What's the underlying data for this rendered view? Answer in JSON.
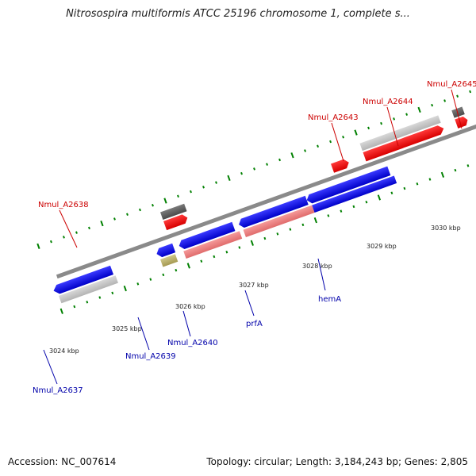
{
  "title": "Nitrosospira multiformis ATCC 25196 chromosome 1, complete s...",
  "footer": {
    "accession": "Accession: NC_007614",
    "summary": "Topology: circular; Length: 3,184,243 bp; Genes: 2,805"
  },
  "scale": {
    "ticks": [
      "3024 kbp",
      "3025 kbp",
      "3026 kbp",
      "3027 kbp",
      "3028 kbp",
      "3029 kbp",
      "3030 kbp"
    ]
  },
  "colors": {
    "cds": "#0000ee",
    "cds_highlight": "#f08080",
    "gene_label_forward": "#cc0000",
    "gene_label_reverse": "#0000aa",
    "backbone": "#808080",
    "ticks": "#008000"
  },
  "genes": {
    "forward": [
      "Nmul_A2638",
      "Nmul_A2643",
      "Nmul_A2644",
      "Nmul_A2645"
    ],
    "reverse": [
      "Nmul_A2637",
      "Nmul_A2639",
      "Nmul_A2640",
      "prfA",
      "hemA"
    ]
  }
}
